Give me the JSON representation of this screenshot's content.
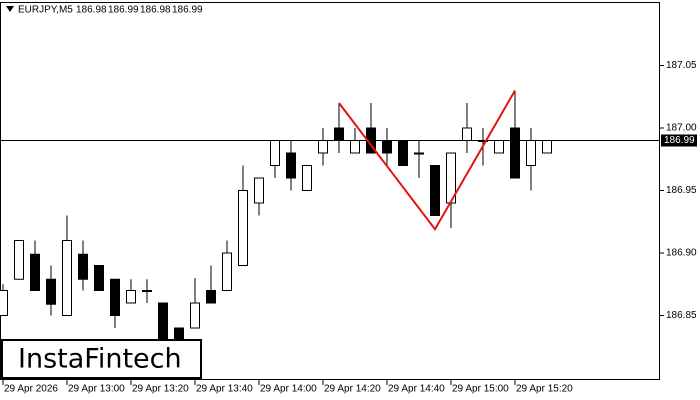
{
  "chart_data": {
    "type": "candlestick",
    "title": "EURJPY,M5",
    "header_values": [
      186.98,
      186.99,
      186.98,
      186.99
    ],
    "watermark": "InstaFintech",
    "categories": [
      "29 Apr 2026",
      null,
      null,
      null,
      "29 Apr 13:00",
      null,
      null,
      null,
      "29 Apr 13:20",
      null,
      null,
      null,
      "29 Apr 13:40",
      null,
      null,
      null,
      "29 Apr 14:00",
      null,
      null,
      null,
      "29 Apr 14:20",
      null,
      null,
      null,
      "29 Apr 14:40",
      null,
      null,
      null,
      "29 Apr 15:00",
      null,
      null,
      null,
      "29 Apr 15:20",
      null,
      null
    ],
    "open": [
      186.85,
      186.879,
      186.899,
      186.879,
      186.85,
      186.899,
      186.89,
      186.879,
      186.86,
      186.87,
      186.86,
      186.84,
      186.84,
      186.87,
      186.87,
      186.89,
      186.94,
      186.97,
      186.98,
      186.95,
      186.98,
      187.0,
      186.98,
      187.0,
      186.99,
      186.99,
      186.98,
      186.97,
      186.94,
      186.99,
      186.99,
      186.98,
      187.0,
      186.97,
      186.98
    ],
    "high": [
      186.875,
      186.91,
      186.91,
      186.89,
      186.93,
      186.91,
      186.89,
      186.879,
      186.879,
      186.879,
      186.86,
      186.84,
      186.88,
      186.89,
      186.91,
      186.97,
      186.96,
      186.99,
      186.99,
      186.97,
      187.0,
      187.02,
      187.0,
      187.02,
      187.0,
      186.99,
      186.99,
      186.97,
      186.98,
      187.02,
      187.0,
      186.99,
      187.03,
      187.0,
      186.99
    ],
    "low": [
      186.85,
      186.879,
      186.87,
      186.85,
      186.85,
      186.87,
      186.87,
      186.84,
      186.86,
      186.86,
      186.826,
      186.822,
      186.84,
      186.86,
      186.87,
      186.89,
      186.93,
      186.96,
      186.95,
      186.95,
      186.97,
      186.98,
      186.98,
      186.98,
      186.97,
      186.97,
      186.96,
      186.93,
      186.92,
      186.98,
      186.97,
      186.98,
      186.96,
      186.95,
      186.98
    ],
    "close": [
      186.87,
      186.91,
      186.87,
      186.859,
      186.91,
      186.879,
      186.87,
      186.85,
      186.87,
      186.87,
      186.826,
      186.826,
      186.86,
      186.86,
      186.9,
      186.95,
      186.96,
      186.99,
      186.96,
      186.97,
      186.99,
      186.99,
      186.99,
      186.98,
      186.98,
      186.97,
      186.98,
      186.93,
      186.98,
      187.0,
      186.99,
      186.99,
      186.96,
      186.99,
      186.99
    ],
    "up_color": "#ffffff",
    "down_color": "#000000",
    "outline_color": "#000000",
    "last_price": 186.99,
    "pattern": {
      "color": "#e8120c",
      "x": [
        21,
        27,
        32
      ],
      "y": [
        187.02,
        186.919,
        187.03
      ]
    },
    "ylim": [
      186.7984,
      187.1008
    ],
    "yticks": [
      186.85,
      {
        "value": 186.9,
        "label": "186.90"
      },
      186.95,
      {
        "value": 187,
        "label": "187.00"
      },
      187.05
    ],
    "grid": false
  }
}
